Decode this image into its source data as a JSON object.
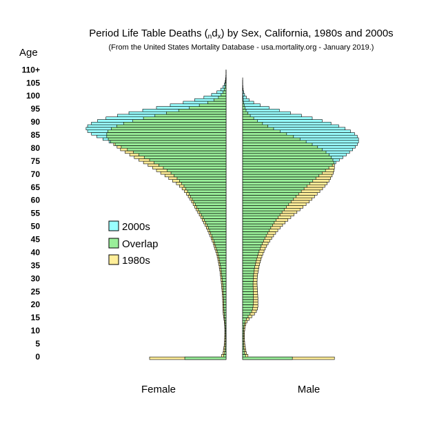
{
  "chart_data": {
    "type": "bar",
    "layout": "population-pyramid",
    "title": "Period Life Table Deaths (ndx) by Sex, California, 1980s and 2000s",
    "title_parts": {
      "pre": "Period Life Table Deaths (",
      "sub_n": "n",
      "d": "d",
      "sub_x": "x",
      "post": ") by Sex, California, 1980s and 2000s"
    },
    "subtitle": "(From the United States Mortality Database - usa.mortality.org - January 2019.)",
    "ylabel": "Age",
    "y_ticks": [
      "0",
      "5",
      "10",
      "15",
      "20",
      "25",
      "30",
      "35",
      "40",
      "45",
      "50",
      "55",
      "60",
      "65",
      "70",
      "75",
      "80",
      "85",
      "90",
      "95",
      "100",
      "105",
      "110+"
    ],
    "panels": [
      "Female",
      "Male"
    ],
    "legend": [
      "2000s",
      "Overlap",
      "1980s"
    ],
    "colors": {
      "2000s": "#99ffff",
      "Overlap": "#99ee99",
      "1980s": "#ffee99",
      "outline": "#000000"
    },
    "value_unit": "deaths per 100,000 (radix)",
    "ages": [
      0,
      1,
      2,
      3,
      4,
      5,
      6,
      7,
      8,
      9,
      10,
      11,
      12,
      13,
      14,
      15,
      16,
      17,
      18,
      19,
      20,
      21,
      22,
      23,
      24,
      25,
      26,
      27,
      28,
      29,
      30,
      31,
      32,
      33,
      34,
      35,
      36,
      37,
      38,
      39,
      40,
      41,
      42,
      43,
      44,
      45,
      46,
      47,
      48,
      49,
      50,
      51,
      52,
      53,
      54,
      55,
      56,
      57,
      58,
      59,
      60,
      61,
      62,
      63,
      64,
      65,
      66,
      67,
      68,
      69,
      70,
      71,
      72,
      73,
      74,
      75,
      76,
      77,
      78,
      79,
      80,
      81,
      82,
      83,
      84,
      85,
      86,
      87,
      88,
      89,
      90,
      91,
      92,
      93,
      94,
      95,
      96,
      97,
      98,
      99,
      100,
      101,
      102,
      103,
      104,
      105,
      106,
      107,
      108,
      109,
      110
    ],
    "female_1980s": [
      1000,
      60,
      40,
      35,
      30,
      25,
      22,
      20,
      19,
      18,
      17,
      17,
      18,
      20,
      24,
      28,
      33,
      37,
      40,
      42,
      43,
      44,
      45,
      46,
      48,
      51,
      54,
      57,
      60,
      63,
      67,
      71,
      75,
      79,
      84,
      89,
      95,
      101,
      108,
      116,
      125,
      135,
      146,
      157,
      169,
      182,
      196,
      210,
      225,
      241,
      258,
      275,
      293,
      312,
      331,
      351,
      371,
      391,
      411,
      431,
      451,
      472,
      495,
      519,
      545,
      575,
      610,
      650,
      700,
      750,
      800,
      855,
      910,
      960,
      1020,
      1080,
      1140,
      1200,
      1260,
      1320,
      1380,
      1425,
      1470,
      1510,
      1540,
      1560,
      1560,
      1545,
      1500,
      1430,
      1340,
      1220,
      1080,
      930,
      780,
      620,
      480,
      350,
      240,
      160,
      100,
      65,
      40,
      25,
      15,
      10,
      6,
      4,
      2,
      1,
      1
    ],
    "female_2000s": [
      540,
      30,
      20,
      15,
      12,
      10,
      9,
      8,
      8,
      8,
      9,
      9,
      10,
      11,
      14,
      18,
      21,
      25,
      27,
      28,
      29,
      30,
      31,
      32,
      34,
      36,
      38,
      40,
      43,
      46,
      49,
      53,
      57,
      61,
      65,
      71,
      77,
      83,
      90,
      98,
      107,
      116,
      126,
      137,
      148,
      160,
      173,
      187,
      201,
      216,
      232,
      249,
      266,
      284,
      303,
      323,
      343,
      363,
      383,
      403,
      423,
      443,
      463,
      483,
      503,
      525,
      550,
      580,
      610,
      640,
      680,
      720,
      770,
      820,
      880,
      940,
      1000,
      1070,
      1140,
      1210,
      1290,
      1370,
      1450,
      1530,
      1610,
      1690,
      1760,
      1810,
      1830,
      1810,
      1760,
      1680,
      1570,
      1420,
      1270,
      1090,
      910,
      730,
      560,
      410,
      290,
      190,
      120,
      70,
      40,
      22,
      12,
      6,
      3,
      1,
      1
    ],
    "male_1980s": [
      1200,
      70,
      50,
      42,
      36,
      30,
      27,
      25,
      24,
      24,
      25,
      28,
      33,
      42,
      58,
      85,
      120,
      155,
      180,
      195,
      200,
      200,
      200,
      200,
      198,
      196,
      194,
      192,
      190,
      189,
      190,
      192,
      196,
      201,
      207,
      214,
      222,
      231,
      241,
      252,
      265,
      280,
      296,
      314,
      334,
      356,
      380,
      405,
      432,
      460,
      490,
      522,
      556,
      592,
      630,
      670,
      710,
      750,
      790,
      830,
      870,
      905,
      940,
      975,
      1010,
      1045,
      1075,
      1105,
      1130,
      1150,
      1170,
      1185,
      1195,
      1200,
      1200,
      1195,
      1180,
      1160,
      1130,
      1090,
      1040,
      980,
      910,
      830,
      750,
      665,
      575,
      490,
      405,
      330,
      260,
      195,
      145,
      100,
      70,
      45,
      30,
      20,
      12,
      8,
      5,
      3,
      2,
      1,
      1,
      1,
      1,
      1,
      0,
      0,
      0
    ],
    "male_2000s": [
      650,
      38,
      26,
      20,
      16,
      13,
      12,
      11,
      11,
      11,
      12,
      13,
      16,
      22,
      32,
      48,
      72,
      98,
      118,
      130,
      136,
      138,
      140,
      140,
      140,
      139,
      138,
      137,
      136,
      136,
      138,
      140,
      143,
      147,
      152,
      158,
      165,
      173,
      182,
      192,
      203,
      215,
      228,
      242,
      257,
      273,
      290,
      308,
      327,
      347,
      368,
      390,
      413,
      437,
      462,
      488,
      515,
      543,
      572,
      602,
      633,
      665,
      698,
      732,
      767,
      803,
      840,
      878,
      917,
      957,
      998,
      1040,
      1083,
      1127,
      1172,
      1218,
      1264,
      1310,
      1355,
      1398,
      1438,
      1473,
      1500,
      1515,
      1515,
      1498,
      1463,
      1410,
      1340,
      1255,
      1155,
      1040,
      910,
      770,
      625,
      480,
      345,
      230,
      145,
      85,
      48,
      26,
      14,
      7,
      4,
      2,
      1,
      0,
      0,
      0,
      0
    ]
  }
}
